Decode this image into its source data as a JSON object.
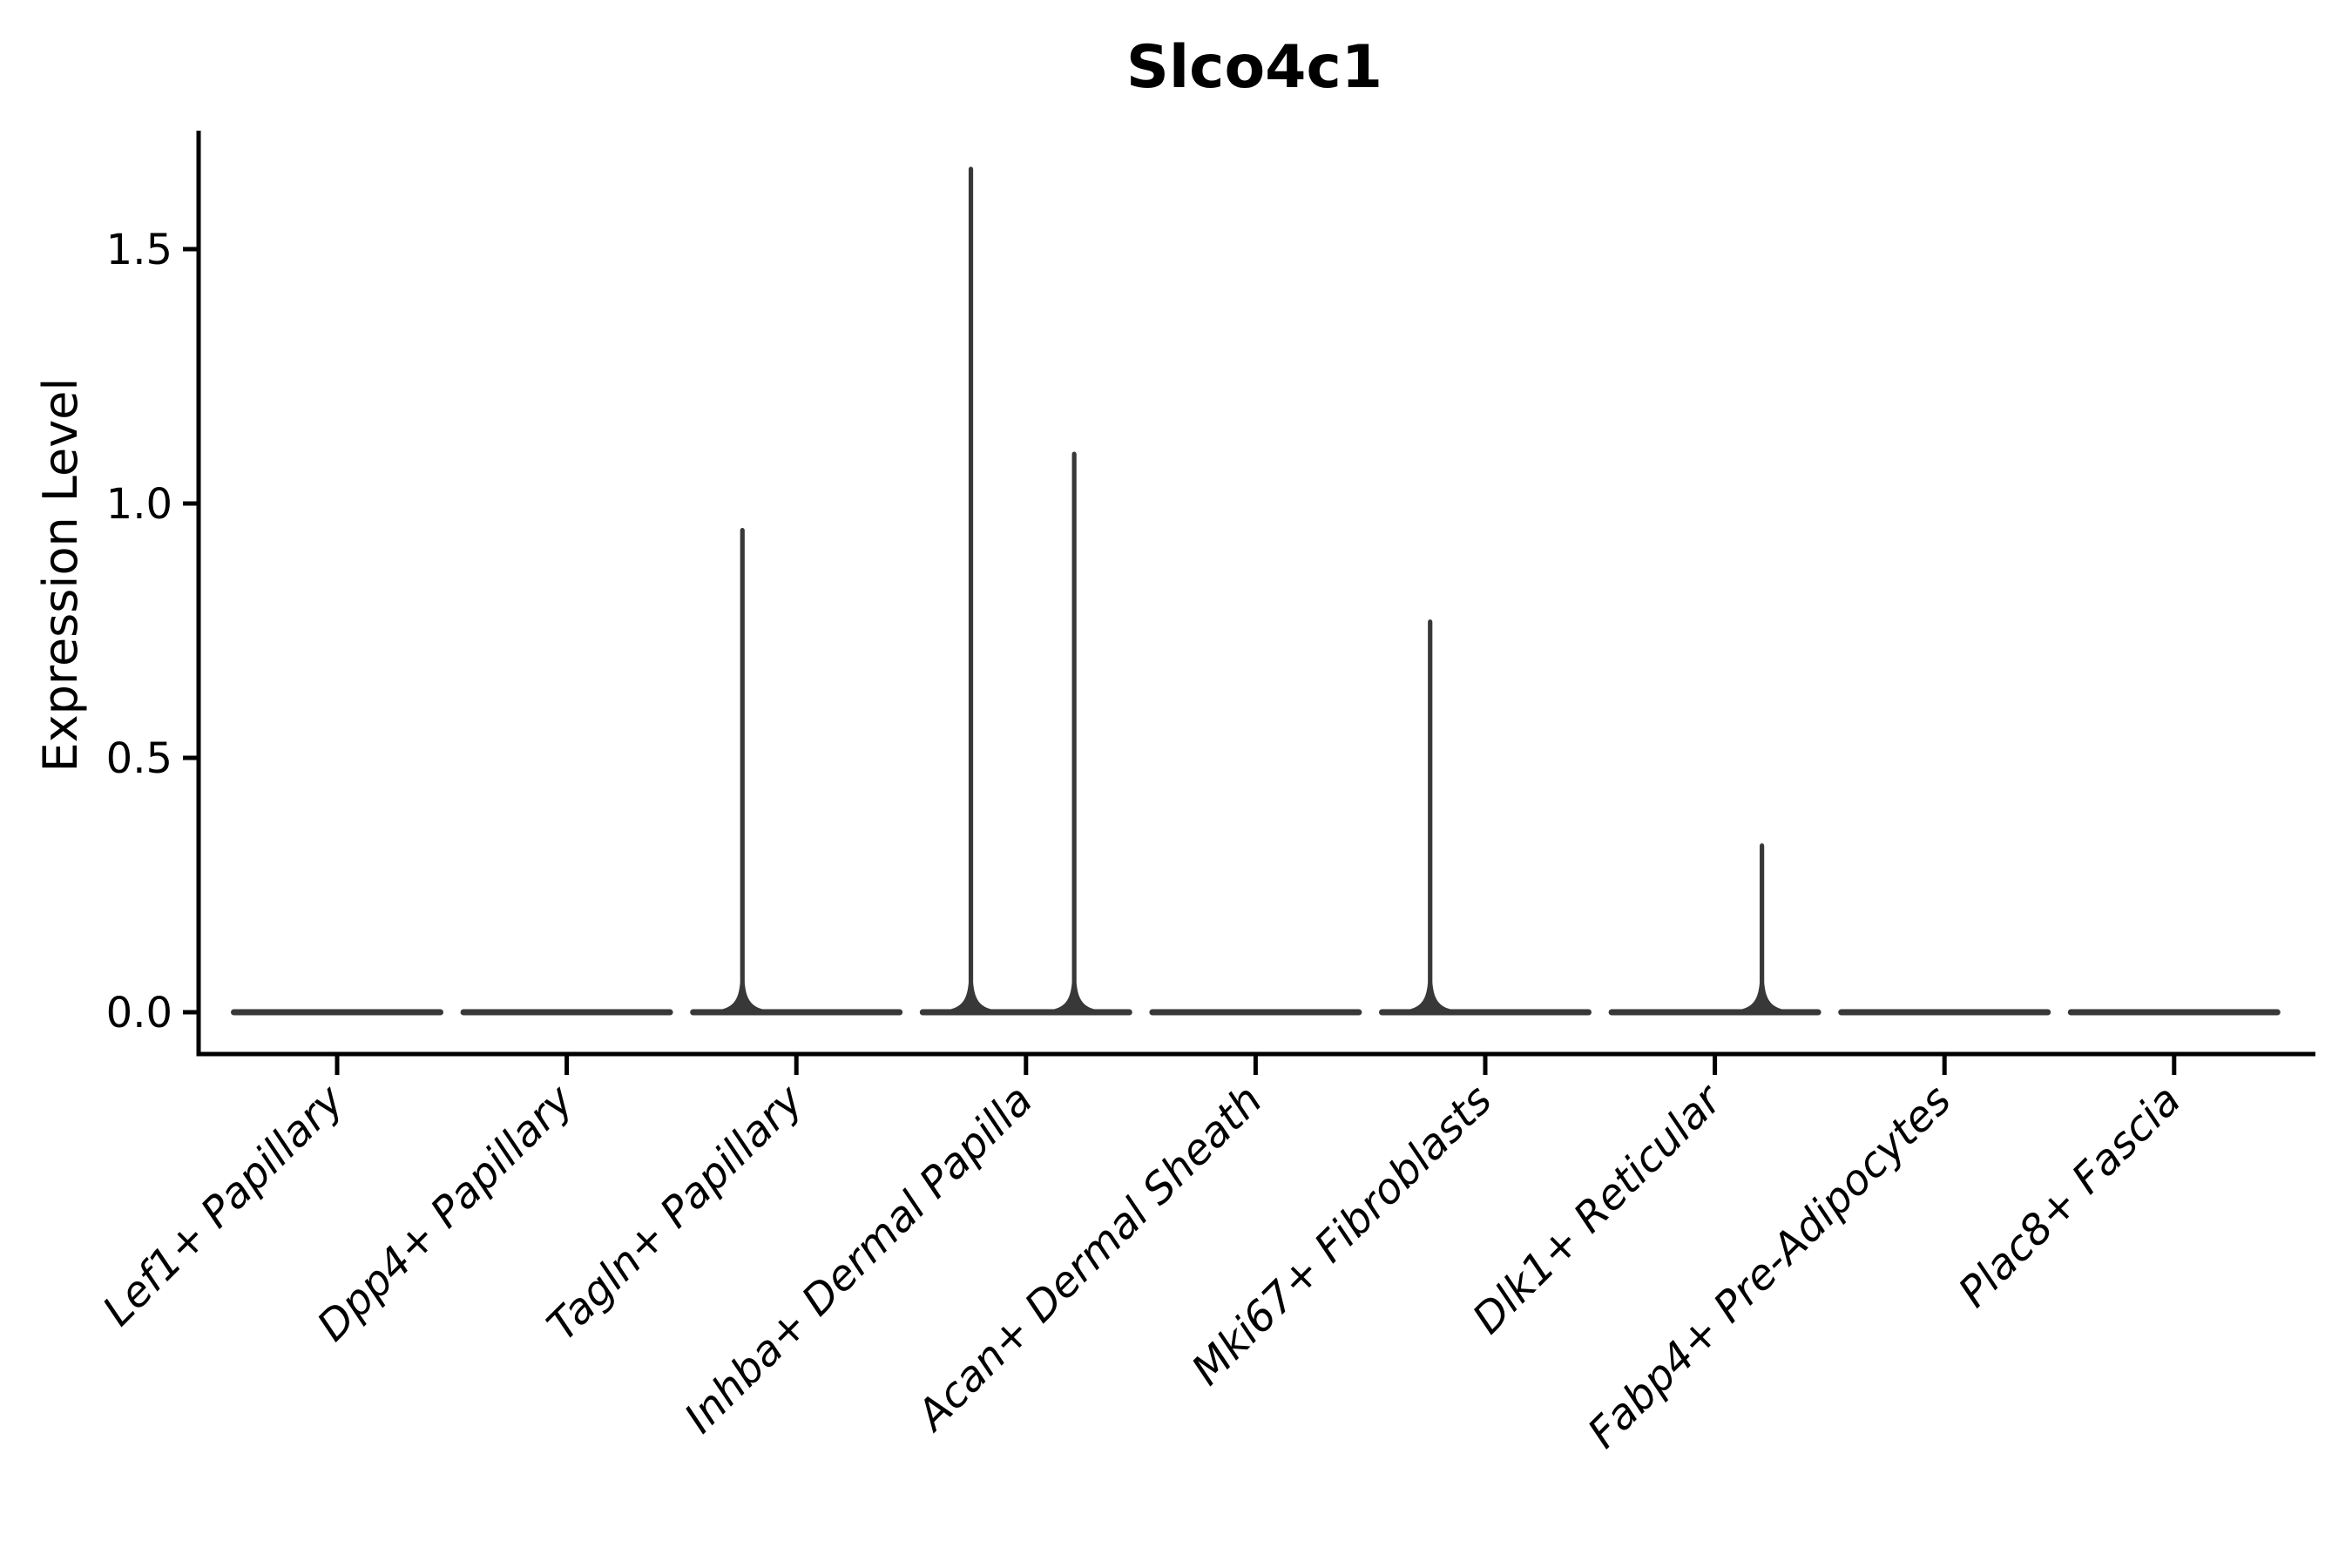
{
  "chart_data": {
    "type": "violin",
    "title": "Slco4c1",
    "xlabel": "",
    "ylabel": "Expression Level",
    "yticks": [
      0.0,
      0.5,
      1.0,
      1.5
    ],
    "ytick_labels": [
      "0.0",
      "0.5",
      "1.0",
      "1.5"
    ],
    "ylim": [
      -0.08,
      1.73
    ],
    "legend": "none",
    "grid": "off",
    "categories": [
      "Lef1+ Papillary",
      "Dpp4+ Papillary",
      "Tagln+ Papillary",
      "Inhba+ Dermal Papilla",
      "Acan+ Dermal Sheath",
      "Mki67+ Fibroblasts",
      "Dlk1+ Reticular",
      "Fabp4+ Pre-Adipocytes",
      "Plac8+ Fascia"
    ],
    "violins": [
      {
        "category": "Lef1+ Papillary",
        "baseline_value": 0.0,
        "spikes": []
      },
      {
        "category": "Dpp4+ Papillary",
        "baseline_value": 0.0,
        "spikes": []
      },
      {
        "category": "Tagln+ Papillary",
        "baseline_value": 0.0,
        "spikes": [
          {
            "offset": -0.235,
            "max": 0.95
          }
        ]
      },
      {
        "category": "Inhba+ Dermal Papilla",
        "baseline_value": 0.0,
        "spikes": [
          {
            "offset": -0.24,
            "max": 1.66
          },
          {
            "offset": 0.21,
            "max": 1.1
          }
        ]
      },
      {
        "category": "Acan+ Dermal Sheath",
        "baseline_value": 0.0,
        "spikes": []
      },
      {
        "category": "Mki67+ Fibroblasts",
        "baseline_value": 0.0,
        "spikes": [
          {
            "offset": -0.24,
            "max": 0.77
          }
        ]
      },
      {
        "category": "Dlk1+ Reticular",
        "baseline_value": 0.0,
        "spikes": [
          {
            "offset": 0.205,
            "max": 0.33
          }
        ]
      },
      {
        "category": "Fabp4+ Pre-Adipocytes",
        "baseline_value": 0.0,
        "spikes": []
      },
      {
        "category": "Plac8+ Fascia",
        "baseline_value": 0.0,
        "spikes": []
      }
    ],
    "colors": {
      "violin": "#383838",
      "axis": "#000000",
      "text": "#000000",
      "background": "#ffffff"
    }
  }
}
